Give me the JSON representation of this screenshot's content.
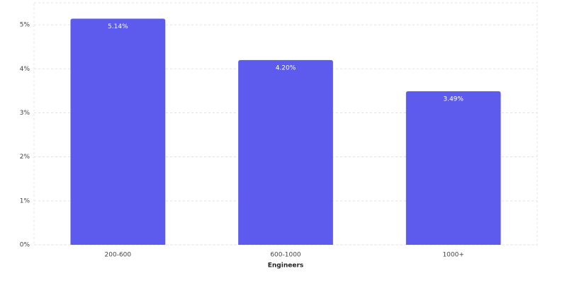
{
  "chart_data": {
    "type": "bar",
    "x_label": "Engineers",
    "categories": [
      "200-600",
      "600-1000",
      "1000+"
    ],
    "values": [
      5.14,
      4.2,
      3.49
    ],
    "value_labels": [
      "5.14%",
      "4.20%",
      "3.49%"
    ],
    "color": "#5c5bee",
    "ylim": [
      0,
      5.5
    ],
    "yticks": [
      {
        "value": 0,
        "label": "0%"
      },
      {
        "value": 1,
        "label": "1%"
      },
      {
        "value": 2,
        "label": "2%"
      },
      {
        "value": 3,
        "label": "3%"
      },
      {
        "value": 4,
        "label": "4%"
      },
      {
        "value": 5,
        "label": "5%"
      }
    ],
    "grid": true
  }
}
